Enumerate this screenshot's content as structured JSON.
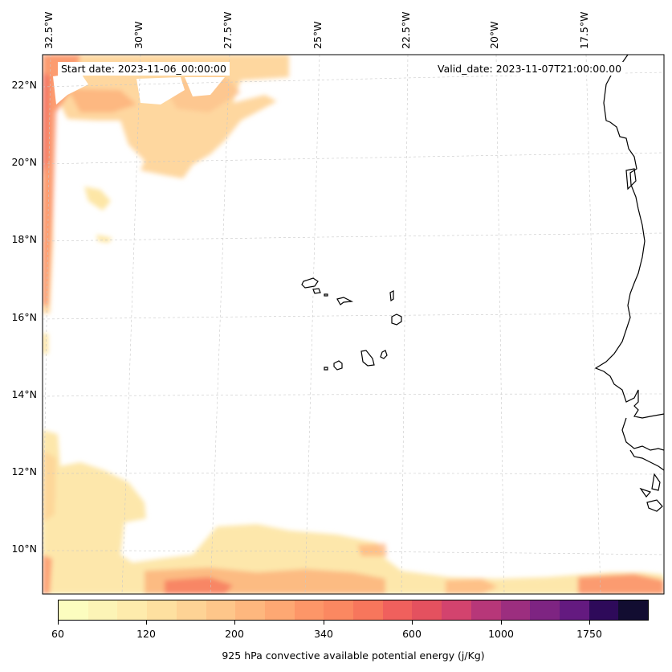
{
  "header": {
    "start_date": "Start date: 2023-11-06_00:00:00",
    "valid_date": "Valid_date: 2023-11-07T21:00:00.00"
  },
  "axes": {
    "lon_labels": [
      "32.5°W",
      "30°W",
      "27.5°W",
      "25°W",
      "22.5°W",
      "20°W",
      "17.5°W"
    ],
    "lat_labels": [
      "22°N",
      "20°N",
      "18°N",
      "16°N",
      "14°N",
      "12°N",
      "10°N"
    ],
    "gridlines": true
  },
  "colorbar": {
    "title": "925 hPa convective available potential energy (j/Kg)",
    "tick_labels": [
      "60",
      "120",
      "200",
      "340",
      "600",
      "1000",
      "1750"
    ],
    "colors": [
      "#fcfdbf",
      "#fcf4b6",
      "#feebac",
      "#fee0a0",
      "#fed395",
      "#fec68a",
      "#feb77e",
      "#fea873",
      "#fd9668",
      "#fb8861",
      "#f7765c",
      "#f0605d",
      "#e4515f",
      "#d3436e",
      "#b73779",
      "#9c2e7f",
      "#7e2482",
      "#641a80",
      "#2e0a5a",
      "#120d31"
    ]
  },
  "chart_data": {
    "type": "map",
    "field": "925 hPa convective available potential energy",
    "units": "j/Kg",
    "levels": [
      60,
      120,
      200,
      340,
      600,
      1000,
      1750
    ],
    "lon_range": [
      -33,
      -16
    ],
    "lat_range": [
      9,
      22.7
    ],
    "colormap": "magma_r",
    "coastlines": true
  }
}
